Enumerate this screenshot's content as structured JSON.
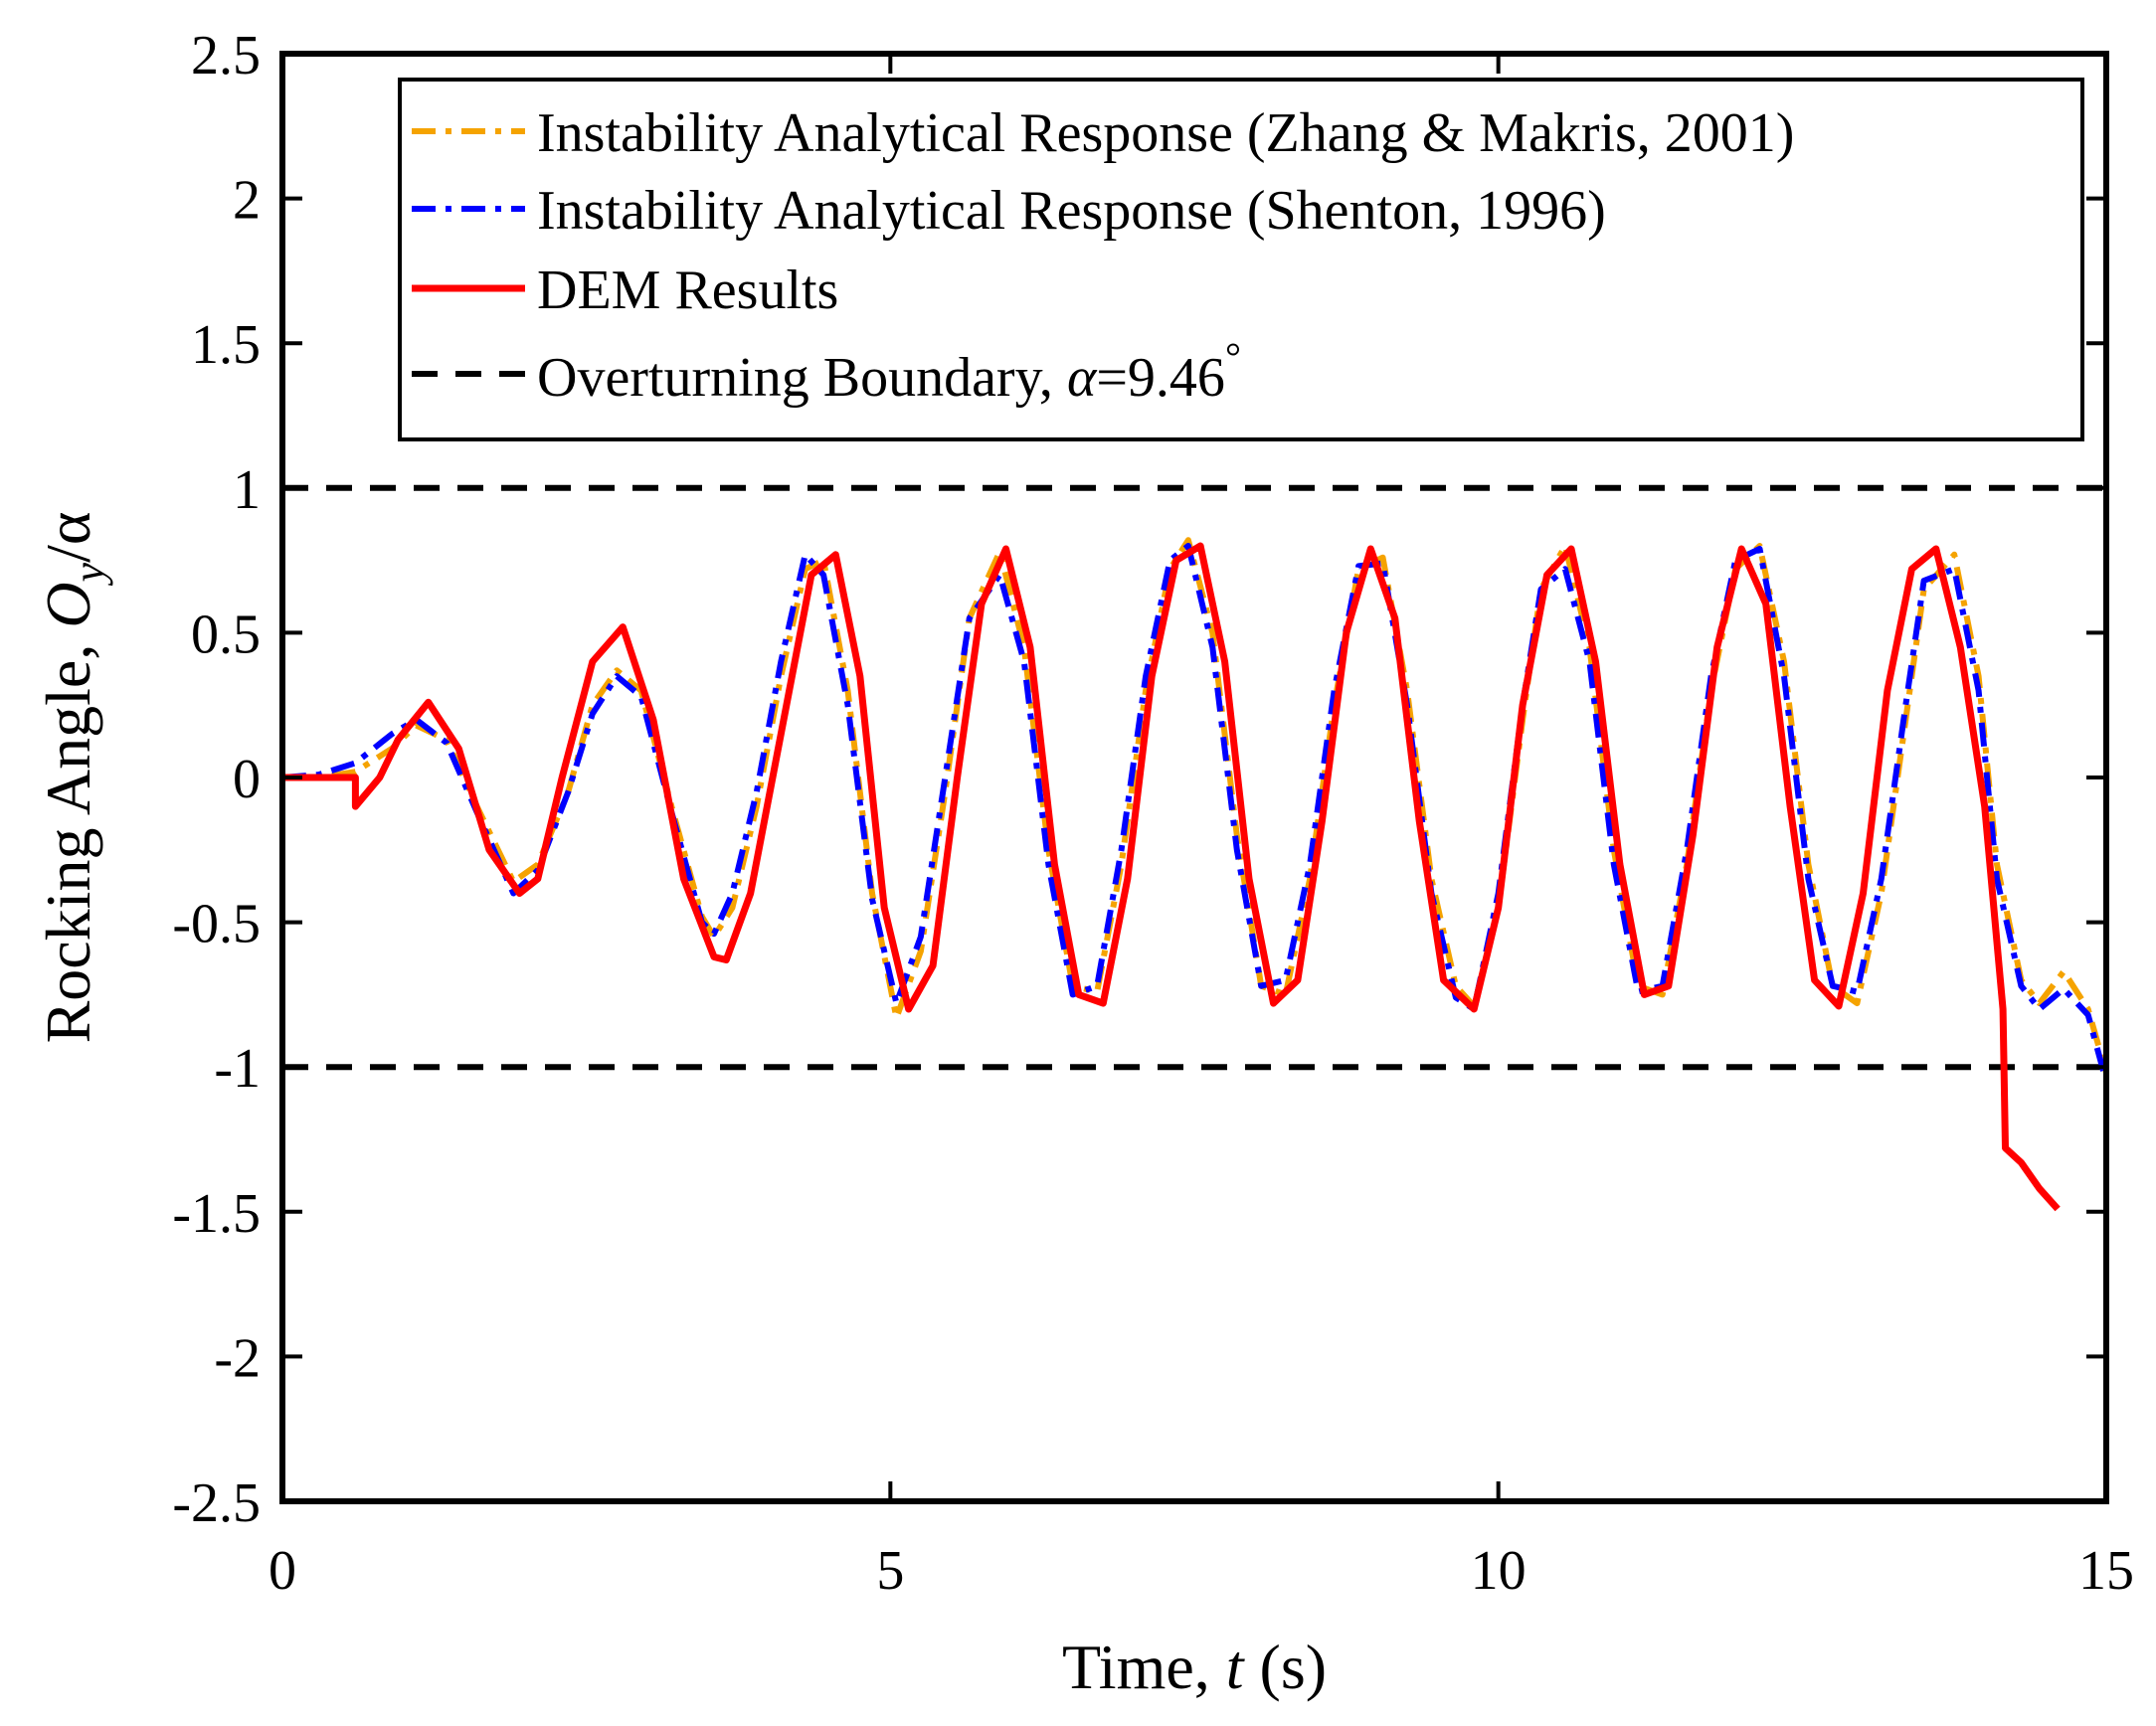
{
  "chart_data": {
    "type": "line",
    "title": "",
    "xlabel": "Time, t (s)",
    "xlabel_main": "Time, ",
    "xlabel_var": "t",
    "xlabel_unit": " (s)",
    "ylabel": "Rocking Angle, Oy/α",
    "ylabel_main": "Rocking Angle, ",
    "ylabel_var": "O",
    "ylabel_sub": "y",
    "ylabel_den": "/α",
    "xlim": [
      0,
      15
    ],
    "ylim": [
      -2.5,
      2.5
    ],
    "xticks": [
      0,
      5,
      10,
      15
    ],
    "xtick_labels": [
      "0",
      "5",
      "10",
      "15"
    ],
    "yticks": [
      -2.5,
      -2,
      -1.5,
      -1,
      -0.5,
      0,
      0.5,
      1,
      1.5,
      2,
      2.5
    ],
    "ytick_labels": [
      "-2.5",
      "-2",
      "-1.5",
      "-1",
      "-0.5",
      "0",
      "0.5",
      "1",
      "1.5",
      "2",
      "2.5"
    ],
    "grid": false,
    "legend_position": "top-right",
    "series": [
      {
        "name": "Instability Analytical Response (Zhang & Makris, 2001)",
        "color": "#F5A300",
        "style": "dash-dot",
        "x": [
          0,
          0.3,
          0.6,
          0.9,
          1.1,
          1.35,
          1.6,
          1.9,
          2.1,
          2.35,
          2.55,
          2.75,
          2.95,
          3.2,
          3.45,
          3.55,
          3.7,
          3.9,
          4.1,
          4.3,
          4.45,
          4.65,
          4.85,
          5.05,
          5.25,
          5.45,
          5.65,
          5.9,
          6.1,
          6.3,
          6.5,
          6.7,
          6.9,
          7.1,
          7.3,
          7.45,
          7.65,
          7.85,
          8.05,
          8.25,
          8.45,
          8.65,
          8.85,
          9.05,
          9.25,
          9.45,
          9.65,
          9.8,
          10.0,
          10.2,
          10.35,
          10.55,
          10.75,
          10.95,
          11.15,
          11.35,
          11.55,
          11.75,
          11.95,
          12.15,
          12.35,
          12.55,
          12.75,
          12.95,
          13.15,
          13.35,
          13.5,
          13.75,
          13.95,
          14.1,
          14.3,
          14.45,
          14.65,
          14.85,
          15.0
        ],
        "y": [
          0,
          0,
          0.02,
          0.1,
          0.18,
          0.13,
          -0.1,
          -0.36,
          -0.3,
          -0.05,
          0.25,
          0.37,
          0.3,
          -0.1,
          -0.48,
          -0.55,
          -0.45,
          -0.1,
          0.35,
          0.72,
          0.75,
          0.3,
          -0.4,
          -0.83,
          -0.6,
          -0.05,
          0.55,
          0.78,
          0.45,
          -0.25,
          -0.72,
          -0.74,
          -0.3,
          0.3,
          0.72,
          0.82,
          0.5,
          -0.2,
          -0.72,
          -0.75,
          -0.35,
          0.25,
          0.72,
          0.76,
          0.3,
          -0.35,
          -0.72,
          -0.79,
          -0.45,
          0.2,
          0.65,
          0.8,
          0.45,
          -0.25,
          -0.72,
          -0.75,
          -0.3,
          0.3,
          0.72,
          0.8,
          0.4,
          -0.3,
          -0.72,
          -0.78,
          -0.4,
          0.2,
          0.65,
          0.77,
          0.35,
          -0.3,
          -0.7,
          -0.78,
          -0.67,
          -0.8,
          -1.02
        ]
      },
      {
        "name": "Instability Analytical Response (Shenton, 1996)",
        "color": "#0000FF",
        "style": "dash-dot",
        "x": [
          0,
          0.3,
          0.6,
          0.9,
          1.1,
          1.35,
          1.6,
          1.9,
          2.1,
          2.35,
          2.55,
          2.75,
          2.95,
          3.2,
          3.45,
          3.55,
          3.7,
          3.9,
          4.1,
          4.3,
          4.45,
          4.65,
          4.85,
          5.05,
          5.25,
          5.45,
          5.65,
          5.9,
          6.1,
          6.3,
          6.5,
          6.7,
          6.9,
          7.1,
          7.3,
          7.45,
          7.65,
          7.85,
          8.05,
          8.25,
          8.45,
          8.65,
          8.85,
          9.05,
          9.25,
          9.45,
          9.65,
          9.8,
          10.0,
          10.2,
          10.35,
          10.55,
          10.75,
          10.95,
          11.15,
          11.35,
          11.55,
          11.75,
          11.95,
          12.15,
          12.35,
          12.55,
          12.75,
          12.95,
          13.15,
          13.35,
          13.5,
          13.75,
          13.95,
          14.1,
          14.3,
          14.45,
          14.65,
          14.85,
          15.0
        ],
        "y": [
          0,
          0.01,
          0.05,
          0.15,
          0.2,
          0.12,
          -0.12,
          -0.4,
          -0.32,
          -0.05,
          0.22,
          0.35,
          0.28,
          -0.12,
          -0.5,
          -0.54,
          -0.4,
          -0.05,
          0.4,
          0.77,
          0.7,
          0.25,
          -0.42,
          -0.78,
          -0.55,
          0.0,
          0.55,
          0.7,
          0.4,
          -0.3,
          -0.75,
          -0.72,
          -0.25,
          0.35,
          0.75,
          0.8,
          0.45,
          -0.25,
          -0.72,
          -0.7,
          -0.3,
          0.3,
          0.73,
          0.74,
          0.25,
          -0.4,
          -0.76,
          -0.8,
          -0.4,
          0.25,
          0.65,
          0.72,
          0.4,
          -0.3,
          -0.74,
          -0.72,
          -0.25,
          0.35,
          0.75,
          0.79,
          0.35,
          -0.35,
          -0.72,
          -0.74,
          -0.35,
          0.25,
          0.68,
          0.72,
          0.3,
          -0.35,
          -0.72,
          -0.8,
          -0.73,
          -0.82,
          -1.05
        ]
      },
      {
        "name": "DEM Results",
        "color": "#FF0000",
        "style": "solid",
        "x": [
          0,
          0.5,
          0.6,
          0.6,
          0.8,
          0.95,
          1.2,
          1.45,
          1.7,
          1.95,
          2.1,
          2.3,
          2.55,
          2.8,
          3.05,
          3.3,
          3.55,
          3.65,
          3.85,
          4.1,
          4.35,
          4.55,
          4.75,
          4.95,
          5.15,
          5.35,
          5.55,
          5.75,
          5.95,
          6.15,
          6.35,
          6.55,
          6.75,
          6.95,
          7.15,
          7.35,
          7.55,
          7.75,
          7.95,
          8.15,
          8.35,
          8.55,
          8.75,
          8.95,
          9.15,
          9.35,
          9.55,
          9.8,
          10.0,
          10.2,
          10.4,
          10.6,
          10.8,
          11.0,
          11.2,
          11.4,
          11.6,
          11.8,
          12.0,
          12.2,
          12.4,
          12.6,
          12.8,
          13.0,
          13.2,
          13.4,
          13.6,
          13.8,
          14.0,
          14.15,
          14.17,
          14.17,
          14.3,
          14.45,
          14.6
        ],
        "y": [
          0,
          0,
          0,
          -0.1,
          0.0,
          0.13,
          0.26,
          0.1,
          -0.25,
          -0.4,
          -0.35,
          0.0,
          0.4,
          0.52,
          0.2,
          -0.35,
          -0.62,
          -0.63,
          -0.4,
          0.15,
          0.7,
          0.77,
          0.35,
          -0.45,
          -0.8,
          -0.65,
          0.0,
          0.6,
          0.79,
          0.45,
          -0.3,
          -0.75,
          -0.78,
          -0.35,
          0.35,
          0.75,
          0.8,
          0.4,
          -0.35,
          -0.78,
          -0.7,
          -0.15,
          0.5,
          0.79,
          0.55,
          -0.15,
          -0.7,
          -0.8,
          -0.45,
          0.25,
          0.7,
          0.79,
          0.4,
          -0.3,
          -0.75,
          -0.72,
          -0.2,
          0.45,
          0.79,
          0.6,
          -0.1,
          -0.7,
          -0.79,
          -0.4,
          0.3,
          0.72,
          0.79,
          0.45,
          -0.1,
          -0.8,
          -1.28,
          -1.28,
          -1.33,
          -1.42,
          -1.49
        ]
      },
      {
        "name": "Overturning Boundary, α=9.46°",
        "name_main": "Overturning Boundary, ",
        "name_var": "α",
        "name_value": "=9.46",
        "name_sup": "°",
        "color": "#000000",
        "style": "dash",
        "x": [
          0,
          15
        ],
        "y": [
          1,
          1
        ],
        "mirror_y": [
          -1,
          -1
        ]
      }
    ]
  }
}
